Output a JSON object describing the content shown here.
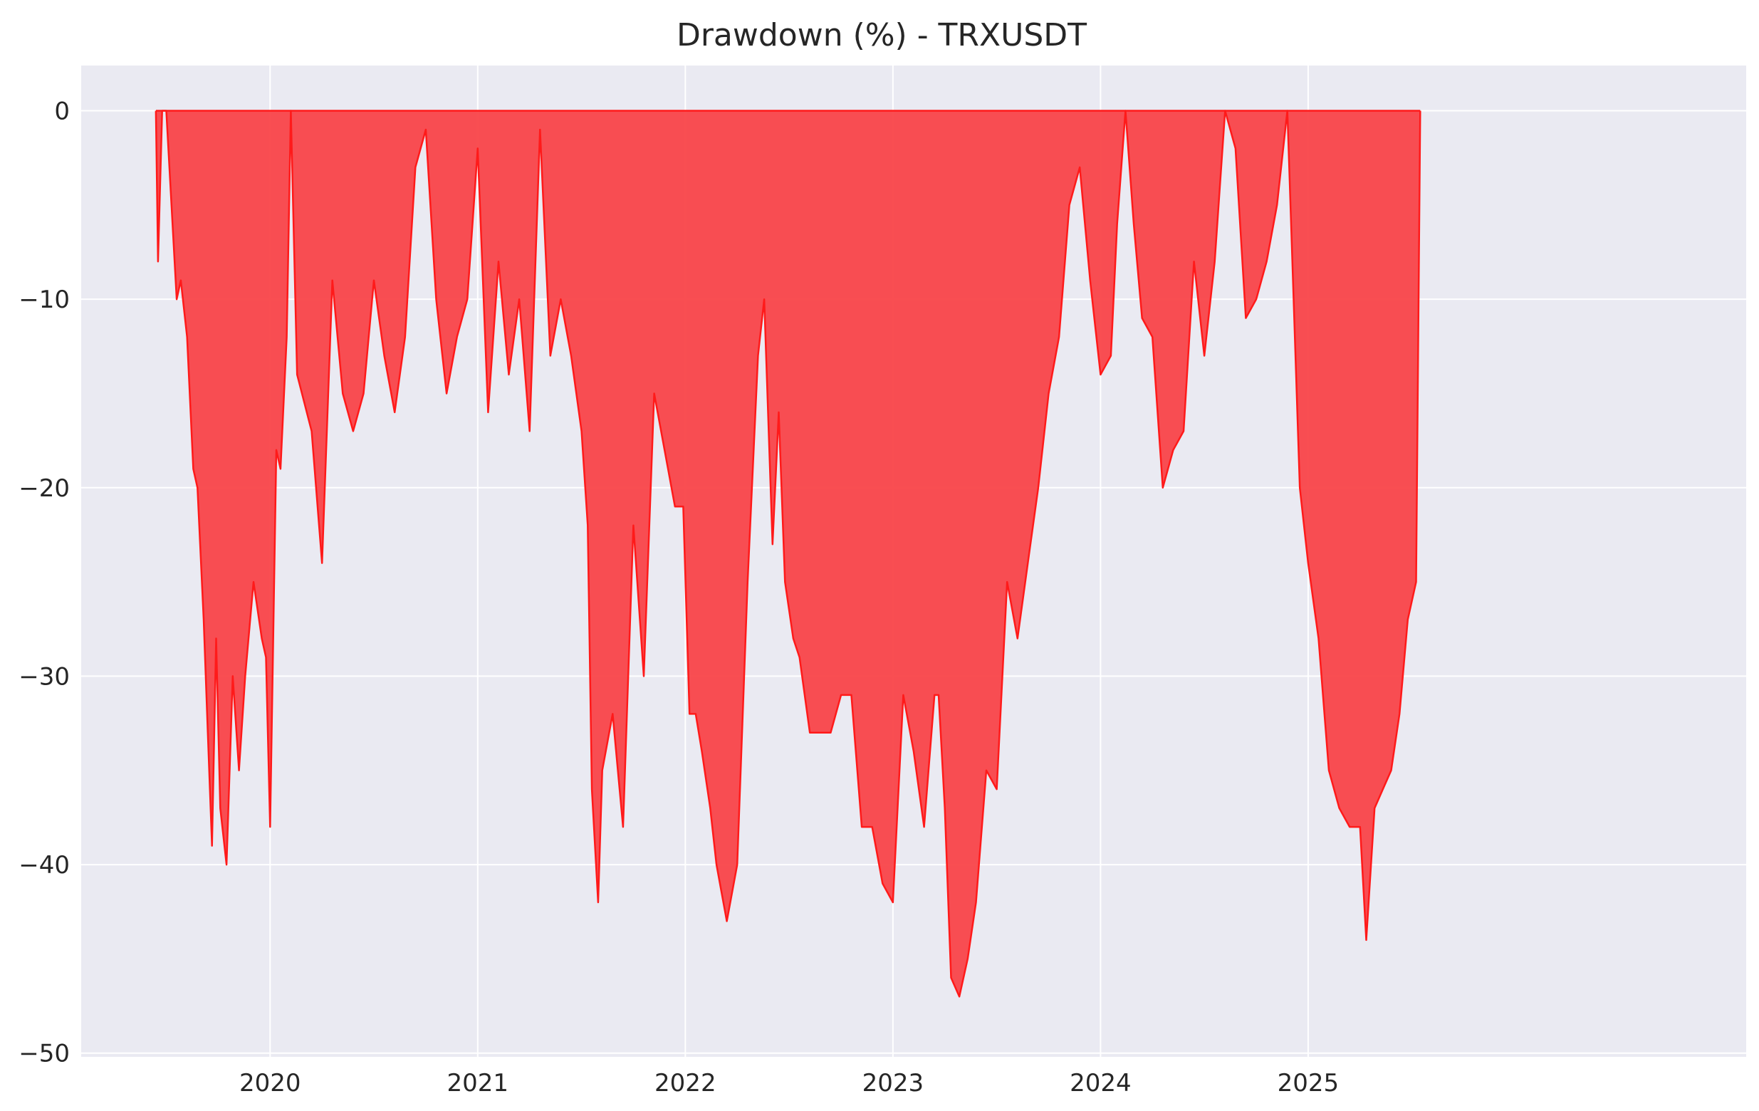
{
  "chart_data": {
    "type": "area",
    "title": "Drawdown (%) - TRXUSDT",
    "xlabel": "",
    "ylabel": "",
    "xlim": [
      2019.09,
      2027.11
    ],
    "ylim": [
      -50.2,
      2.4
    ],
    "x_ticks": [
      {
        "label": "2020",
        "value": 2020
      },
      {
        "label": "2021",
        "value": 2021
      },
      {
        "label": "2022",
        "value": 2022
      },
      {
        "label": "2023",
        "value": 2023
      },
      {
        "label": "2024",
        "value": 2024
      },
      {
        "label": "2025",
        "value": 2025
      }
    ],
    "y_ticks": [
      {
        "label": "0",
        "value": 0
      },
      {
        "label": "−10",
        "value": -10
      },
      {
        "label": "−20",
        "value": -20
      },
      {
        "label": "−30",
        "value": -30
      },
      {
        "label": "−40",
        "value": -40
      },
      {
        "label": "−50",
        "value": -50
      }
    ],
    "grid": true,
    "colors": {
      "fill": "#f94449",
      "line": "#ff1a1a",
      "background": "#eaeaf2",
      "grid": "#ffffff"
    },
    "series": [
      {
        "x": [
          2019.45,
          2019.46,
          2019.47,
          2019.48,
          2019.5,
          2019.55,
          2019.57,
          2019.6,
          2019.63,
          2019.65,
          2019.68,
          2019.7,
          2019.72,
          2019.74,
          2019.76,
          2019.79,
          2019.82,
          2019.85,
          2019.88,
          2019.92,
          2019.96,
          2019.98,
          2020.0,
          2020.03,
          2020.05,
          2020.08,
          2020.1,
          2020.13,
          2020.2,
          2020.25,
          2020.3,
          2020.35,
          2020.4,
          2020.45,
          2020.5,
          2020.55,
          2020.6,
          2020.65,
          2020.7,
          2020.75,
          2020.8,
          2020.85,
          2020.9,
          2020.95,
          2021.0,
          2021.05,
          2021.1,
          2021.15,
          2021.2,
          2021.25,
          2021.3,
          2021.35,
          2021.4,
          2021.45,
          2021.5,
          2021.53,
          2021.55,
          2021.58,
          2021.6,
          2021.65,
          2021.7,
          2021.75,
          2021.8,
          2021.85,
          2021.9,
          2021.95,
          2021.99,
          2022.02,
          2022.05,
          2022.08,
          2022.12,
          2022.15,
          2022.2,
          2022.25,
          2022.3,
          2022.35,
          2022.38,
          2022.42,
          2022.45,
          2022.48,
          2022.52,
          2022.55,
          2022.6,
          2022.65,
          2022.7,
          2022.75,
          2022.8,
          2022.85,
          2022.9,
          2022.95,
          2023.0,
          2023.05,
          2023.1,
          2023.15,
          2023.2,
          2023.22,
          2023.25,
          2023.28,
          2023.32,
          2023.36,
          2023.4,
          2023.45,
          2023.5,
          2023.55,
          2023.6,
          2023.65,
          2023.7,
          2023.75,
          2023.8,
          2023.85,
          2023.9,
          2023.95,
          2024.0,
          2024.05,
          2024.08,
          2024.12,
          2024.16,
          2024.2,
          2024.25,
          2024.3,
          2024.35,
          2024.4,
          2024.45,
          2024.5,
          2024.55,
          2024.6,
          2024.65,
          2024.7,
          2024.75,
          2024.8,
          2024.85,
          2024.9,
          2024.93,
          2024.96,
          2025.0,
          2025.05,
          2025.1,
          2025.15,
          2025.2,
          2025.25,
          2025.28,
          2025.32,
          2025.36,
          2025.4,
          2025.44,
          2025.48,
          2025.52,
          2025.54
        ],
        "y": [
          0,
          -8,
          -4,
          0,
          0,
          -10,
          -9,
          -12,
          -19,
          -20,
          -27,
          -33,
          -39,
          -28,
          -37,
          -40,
          -30,
          -35,
          -30,
          -25,
          -28,
          -29,
          -38,
          -18,
          -19,
          -12,
          0,
          -14,
          -17,
          -24,
          -9,
          -15,
          -17,
          -15,
          -9,
          -13,
          -16,
          -12,
          -3,
          -1,
          -10,
          -15,
          -12,
          -10,
          -2,
          -16,
          -8,
          -14,
          -10,
          -17,
          -1,
          -13,
          -10,
          -13,
          -17,
          -22,
          -36,
          -42,
          -35,
          -32,
          -38,
          -22,
          -30,
          -15,
          -18,
          -21,
          -21,
          -32,
          -32,
          -34,
          -37,
          -40,
          -43,
          -40,
          -25,
          -13,
          -10,
          -23,
          -16,
          -25,
          -28,
          -29,
          -33,
          -33,
          -33,
          -31,
          -31,
          -38,
          -38,
          -41,
          -42,
          -31,
          -34,
          -38,
          -31,
          -31,
          -37,
          -46,
          -47,
          -45,
          -42,
          -35,
          -36,
          -25,
          -28,
          -24,
          -20,
          -15,
          -12,
          -5,
          -3,
          -9,
          -14,
          -13,
          -6,
          0,
          -6,
          -11,
          -12,
          -20,
          -18,
          -17,
          -8,
          -13,
          -8,
          0,
          -2,
          -11,
          -10,
          -8,
          -5,
          0,
          -10,
          -20,
          -24,
          -28,
          -35,
          -37,
          -38,
          -38,
          -44,
          -37,
          -36,
          -35,
          -32,
          -27,
          -25,
          0
        ]
      }
    ]
  }
}
